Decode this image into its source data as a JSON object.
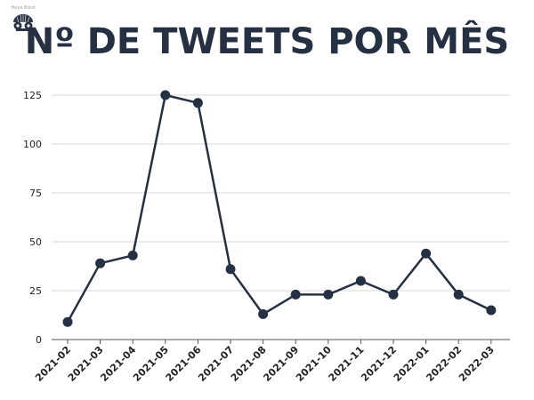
{
  "brand": {
    "name": "Haya Blind",
    "logo_icon": "gears-and-eye-icon"
  },
  "chart_data": {
    "type": "line",
    "title": "Nº DE TWEETS POR MÊS",
    "xlabel": "",
    "ylabel": "",
    "categories": [
      "2021-02",
      "2021-03",
      "2021-04",
      "2021-05",
      "2021-06",
      "2021-07",
      "2021-08",
      "2021-09",
      "2021-10",
      "2021-11",
      "2021-12",
      "2022-01",
      "2022-02",
      "2022-03"
    ],
    "series": [
      {
        "values": [
          9,
          39,
          43,
          125,
          121,
          36,
          13,
          23,
          23,
          30,
          23,
          44,
          23,
          15
        ]
      }
    ],
    "ylim": [
      0,
      130
    ],
    "yticks": [
      0,
      25,
      50,
      75,
      100,
      125
    ],
    "grid": true,
    "line_color": "#263043",
    "grid_color": "#d9d9d9",
    "marker": "circle"
  }
}
